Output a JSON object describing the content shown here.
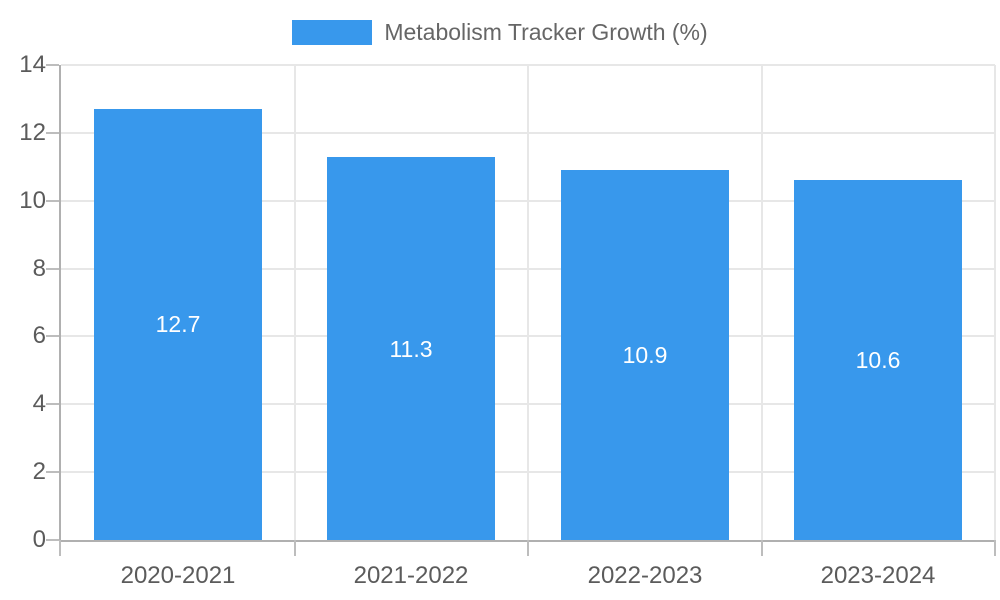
{
  "chart_data": {
    "type": "bar",
    "title": "Metabolism Tracker Growth (%)",
    "categories": [
      "2020-2021",
      "2021-2022",
      "2022-2023",
      "2023-2024"
    ],
    "values": [
      12.7,
      11.3,
      10.9,
      10.6
    ],
    "bar_labels": [
      "12.7",
      "11.3",
      "10.9",
      "10.6"
    ],
    "xlabel": "",
    "ylabel": "",
    "ylim": [
      0,
      14
    ],
    "yticks": [
      0,
      2,
      4,
      6,
      8,
      10,
      12,
      14
    ],
    "grid": true,
    "legend": {
      "label": "Metabolism Tracker Growth (%)",
      "position": "top"
    },
    "colors": {
      "bar": "#3898ec",
      "value_label": "#ffffff",
      "gridline": "#e7e7e7",
      "axis_line": "#b0b0b0",
      "tick_mark": "#bdbdbd",
      "tick_label": "#5b5b5b",
      "legend_text": "#666666",
      "background": "#ffffff"
    }
  }
}
